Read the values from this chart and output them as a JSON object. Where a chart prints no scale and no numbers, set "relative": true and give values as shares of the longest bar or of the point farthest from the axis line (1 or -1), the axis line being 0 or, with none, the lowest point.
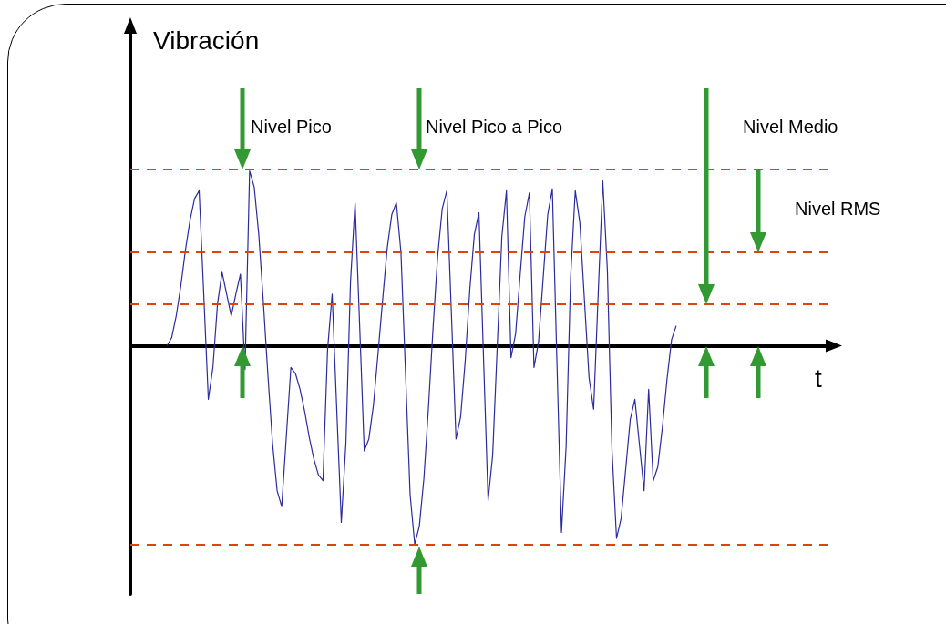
{
  "chart_data": {
    "type": "line",
    "relative": true,
    "xlabel": "t",
    "categories": [
      null,
      null,
      null,
      null,
      null,
      null,
      null,
      null,
      null,
      null,
      null,
      null,
      null,
      null,
      null,
      null,
      null,
      null,
      null,
      null,
      null,
      null,
      null,
      null,
      null,
      null,
      null,
      null,
      null,
      null,
      null,
      null,
      null,
      null,
      null,
      null,
      null,
      null,
      null,
      null,
      null,
      null,
      null,
      null,
      null,
      null,
      null,
      null,
      null,
      null,
      null,
      null,
      null,
      null,
      null,
      null,
      null,
      null,
      null,
      null,
      null,
      null,
      null,
      null,
      null,
      null,
      null,
      null,
      null,
      null,
      null,
      null,
      null,
      null,
      null,
      null,
      null,
      null,
      null,
      null,
      null,
      null,
      null,
      null,
      null,
      null,
      null,
      null,
      null,
      null,
      null,
      null,
      null,
      null,
      null,
      null,
      null,
      null,
      null,
      null,
      null,
      null,
      null,
      null,
      null,
      null,
      null,
      null,
      null,
      null,
      null,
      null,
      null,
      null,
      null,
      null,
      null,
      null,
      null,
      null,
      null,
      null,
      null,
      null,
      null,
      null,
      null,
      null,
      null,
      null,
      null,
      null,
      null,
      null,
      null,
      null,
      null,
      null,
      null,
      null,
      null,
      null,
      null,
      null,
      null,
      null,
      null,
      null,
      null,
      null,
      null,
      null,
      null
    ],
    "series": [
      {
        "color": "#2b2b9e",
        "values": [
          null,
          null,
          null,
          null,
          null,
          null,
          null,
          null,
          0,
          0.04,
          0.15,
          0.3,
          0.48,
          0.63,
          0.74,
          0.78,
          0.26,
          -0.27,
          -0.11,
          0.21,
          0.37,
          0.26,
          0.15,
          0.26,
          0.36,
          -0.12,
          0.88,
          0.8,
          0.56,
          0.22,
          -0.15,
          -0.49,
          -0.73,
          -0.81,
          -0.46,
          -0.11,
          -0.14,
          -0.22,
          -0.33,
          -0.46,
          -0.57,
          -0.65,
          -0.68,
          -0.02,
          0.26,
          -0.32,
          -0.89,
          -0.49,
          0.32,
          0.72,
          0.1,
          -0.53,
          -0.47,
          -0.3,
          -0.04,
          0.23,
          0.49,
          0.66,
          0.72,
          0.47,
          -0.14,
          -0.75,
          -1,
          -0.91,
          -0.67,
          -0.31,
          0.09,
          0.45,
          0.69,
          0.78,
          0.16,
          -0.47,
          -0.36,
          -0.08,
          0.28,
          0.56,
          0.67,
          -0.06,
          -0.78,
          -0.55,
          0,
          0.55,
          0.78,
          -0.06,
          0.06,
          0.36,
          0.65,
          0.77,
          -0.11,
          0.02,
          0.34,
          0.66,
          0.79,
          -0.08,
          -0.94,
          -0.51,
          0.35,
          0.78,
          0.62,
          0.23,
          -0.16,
          -0.32,
          0.26,
          0.83,
          0.38,
          -0.52,
          -0.97,
          -0.87,
          -0.62,
          -0.37,
          -0.27,
          -0.5,
          -0.73,
          -0.22,
          -0.68,
          -0.61,
          -0.41,
          -0.17,
          0.03,
          0.1,
          null,
          null,
          null,
          null,
          null,
          null,
          null,
          null,
          null,
          null,
          null,
          null,
          null,
          null,
          null,
          null,
          null,
          null,
          null,
          null,
          null,
          null,
          null,
          null,
          null,
          null,
          null,
          null,
          null,
          null,
          null,
          null,
          null
        ]
      }
    ],
    "ref_lines": [
      {
        "axis": "y",
        "value": 0.89,
        "color": "#d9440f",
        "line_style": "dashed"
      },
      {
        "axis": "y",
        "value": 0.47,
        "color": "#d9440f",
        "line_style": "dashed"
      },
      {
        "axis": "y",
        "value": 0.21,
        "color": "#d9440f",
        "line_style": "dashed"
      },
      {
        "axis": "y",
        "value": -1,
        "color": "#d9440f",
        "line_style": "dashed"
      }
    ],
    "annotations": [
      "Vibración",
      "Nivel Pico",
      "Nivel Pico a Pico",
      "Nivel Medio",
      "Nivel RMS"
    ]
  }
}
